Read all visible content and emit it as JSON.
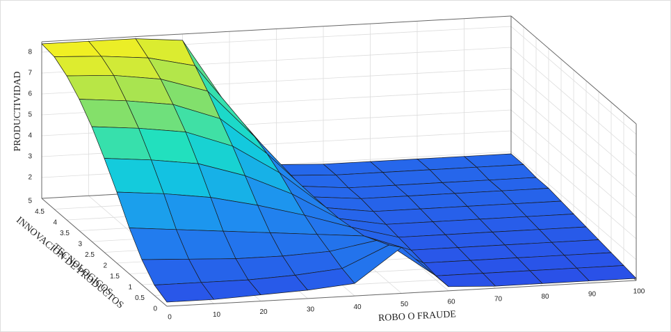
{
  "chart_data": {
    "type": "surface",
    "xlabel": "ROBO O FRAUDE",
    "ylabel": [
      "INNOVACION DE PRODUCTOS",
      "TECNOLOGICOS"
    ],
    "zlabel": "PRODUCTIVIDAD",
    "colormap": "parula",
    "grid": true,
    "x": [
      0,
      10,
      20,
      30,
      40,
      50,
      60,
      70,
      80,
      90,
      100
    ],
    "y": [
      0,
      0.5,
      1,
      1.5,
      2,
      2.5,
      3,
      3.5,
      4,
      4.5,
      5
    ],
    "z": [
      [
        1.2,
        1.2,
        1.3,
        1.4,
        1.6,
        3.2,
        1.2,
        1.1,
        1.1,
        1.1,
        1.1
      ],
      [
        1.5,
        1.5,
        1.5,
        1.6,
        1.8,
        2.8,
        1.2,
        1.2,
        1.2,
        1.2,
        1.2
      ],
      [
        2.2,
        2.1,
        2.0,
        2.0,
        2.1,
        2.5,
        1.3,
        1.3,
        1.3,
        1.3,
        1.3
      ],
      [
        3.2,
        3.0,
        2.8,
        2.6,
        2.4,
        2.2,
        1.4,
        1.4,
        1.4,
        1.4,
        1.4
      ],
      [
        4.4,
        4.2,
        3.9,
        3.4,
        2.8,
        2.1,
        1.5,
        1.5,
        1.5,
        1.5,
        1.5
      ],
      [
        5.5,
        5.3,
        5.0,
        4.3,
        3.3,
        2.0,
        1.6,
        1.6,
        1.6,
        1.6,
        1.6
      ],
      [
        6.5,
        6.3,
        6.0,
        5.2,
        3.8,
        2.0,
        1.7,
        1.7,
        1.7,
        1.7,
        1.7
      ],
      [
        7.3,
        7.1,
        6.8,
        6.0,
        4.2,
        2.0,
        1.8,
        1.8,
        1.8,
        1.8,
        1.8
      ],
      [
        7.9,
        7.8,
        7.5,
        6.8,
        4.5,
        2.0,
        1.8,
        1.8,
        1.8,
        1.8,
        1.8
      ],
      [
        8.3,
        8.2,
        8.0,
        7.5,
        4.7,
        2.0,
        1.9,
        1.9,
        1.9,
        1.9,
        1.9
      ],
      [
        8.4,
        8.4,
        8.4,
        8.2,
        4.8,
        2.0,
        1.9,
        1.9,
        1.9,
        1.9,
        1.9
      ]
    ],
    "xlim": [
      0,
      100
    ],
    "xticks": [
      0,
      10,
      20,
      30,
      40,
      50,
      60,
      70,
      80,
      90,
      100
    ],
    "ylim": [
      0,
      5
    ],
    "yticks": [
      0,
      0.5,
      1,
      1.5,
      2,
      2.5,
      3,
      3.5,
      4,
      4.5,
      5
    ],
    "zlim": [
      1,
      8.5
    ],
    "zticks": [
      2,
      3,
      4,
      5,
      6,
      7,
      8
    ]
  }
}
